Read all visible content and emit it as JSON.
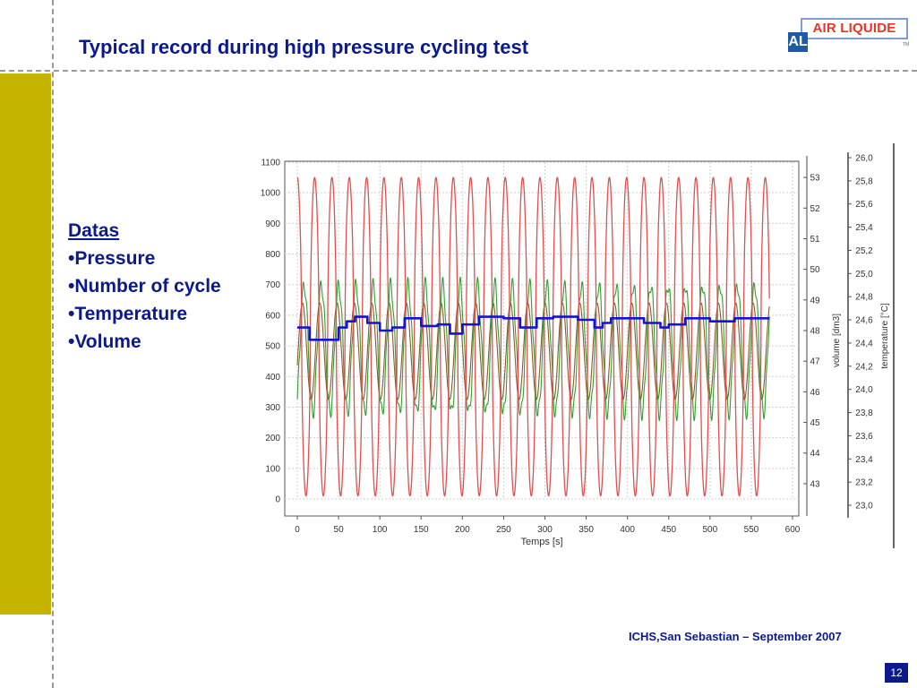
{
  "slide": {
    "title": "Typical record during high pressure cycling test",
    "logo_text": "AIR LIQUIDE",
    "logo_mark": "AL",
    "logo_tm": "TM",
    "bullets_heading": "Datas",
    "bullets": [
      "•Pressure",
      "•Number of cycle",
      "•Temperature",
      "•Volume"
    ],
    "footer": "ICHS,San Sebastian – September 2007",
    "page_number": "12"
  },
  "colors": {
    "accent_bar": "#c4b400",
    "text": "#0a1a8c",
    "pressure": "#e05050",
    "volume": "#1414d2",
    "temperature": "#30a030",
    "cycle": "#8b5a2b"
  },
  "chart_data": {
    "type": "line",
    "xlabel": "Temps [s]",
    "x_ticks": [
      0,
      50,
      100,
      150,
      200,
      250,
      300,
      350,
      400,
      450,
      500,
      550,
      600
    ],
    "xlim": [
      0,
      600
    ],
    "y_left": {
      "ticks": [
        0,
        100,
        200,
        300,
        400,
        500,
        600,
        700,
        800,
        900,
        1000,
        1100
      ],
      "ylim": [
        0,
        1100
      ]
    },
    "y_right1": {
      "label": "volume [dm3]",
      "ticks": [
        43,
        44,
        45,
        46,
        47,
        48,
        49,
        50,
        51,
        52,
        53
      ],
      "ylim": [
        42.5,
        53.5
      ]
    },
    "y_right2": {
      "label": "temperature [°C]",
      "ticks": [
        "23,0",
        "23,2",
        "23,4",
        "23,6",
        "23,8",
        "24,0",
        "24,2",
        "24,4",
        "24,6",
        "24,8",
        "25,0",
        "25,2",
        "25,4",
        "25,6",
        "25,8",
        "26,0"
      ],
      "ylim": [
        23.0,
        26.0
      ]
    },
    "series": [
      {
        "key": "pressure",
        "axis": "left",
        "period_s": 21,
        "min": 10,
        "max": 1050,
        "x_end": 572
      },
      {
        "key": "cycle",
        "axis": "left",
        "period_s": 21,
        "min": 325,
        "max": 640,
        "x_end": 572
      },
      {
        "key": "temperature",
        "axis": "left",
        "period_s": 21,
        "min": 280,
        "max": 700,
        "x_end": 572
      },
      {
        "key": "volume",
        "axis": "left",
        "x_end": 572,
        "steps": [
          [
            0,
            560
          ],
          [
            15,
            520
          ],
          [
            50,
            560
          ],
          [
            60,
            580
          ],
          [
            70,
            595
          ],
          [
            85,
            575
          ],
          [
            100,
            550
          ],
          [
            115,
            560
          ],
          [
            130,
            590
          ],
          [
            150,
            565
          ],
          [
            170,
            570
          ],
          [
            185,
            540
          ],
          [
            200,
            570
          ],
          [
            220,
            595
          ],
          [
            250,
            590
          ],
          [
            270,
            560
          ],
          [
            290,
            590
          ],
          [
            310,
            595
          ],
          [
            340,
            585
          ],
          [
            360,
            560
          ],
          [
            370,
            575
          ],
          [
            380,
            590
          ],
          [
            420,
            575
          ],
          [
            440,
            560
          ],
          [
            450,
            570
          ],
          [
            470,
            590
          ],
          [
            500,
            580
          ],
          [
            530,
            590
          ],
          [
            572,
            590
          ]
        ]
      }
    ]
  }
}
